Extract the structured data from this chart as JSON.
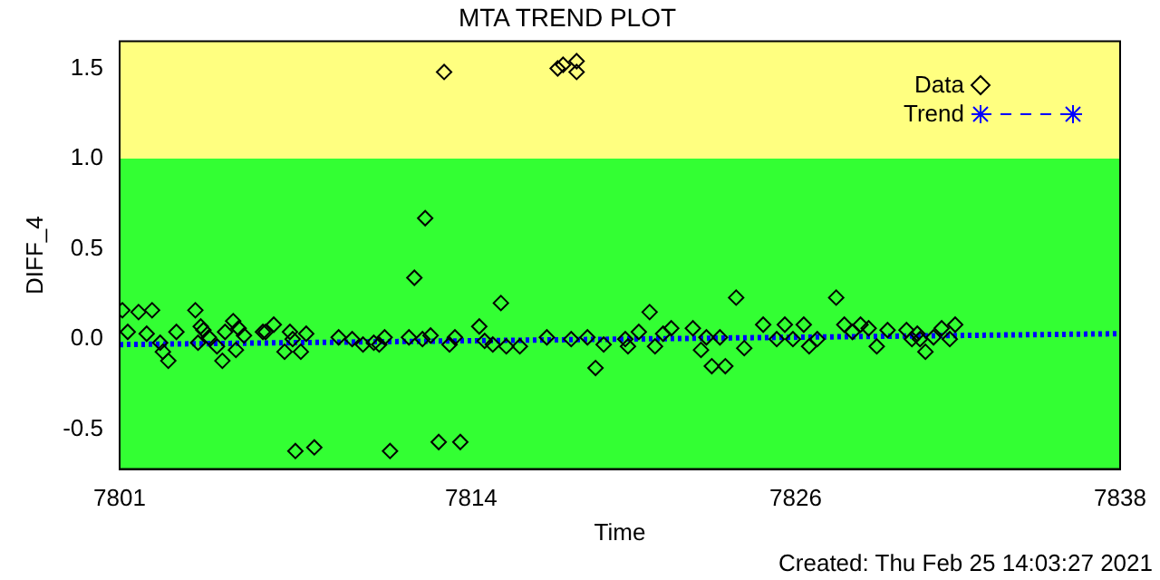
{
  "chart_data": {
    "type": "scatter",
    "title": "MTA TREND PLOT",
    "xlabel": "Time",
    "ylabel": "DIFF_4",
    "xlim": [
      7801,
      7838
    ],
    "xticks": [
      7801,
      7814,
      7826,
      7838
    ],
    "ylim": [
      -0.72,
      1.65
    ],
    "yticks": [
      {
        "value": -0.5,
        "label": "-0.5"
      },
      {
        "value": 0,
        "label": "0.0"
      },
      {
        "value": 0.5,
        "label": "0.5"
      },
      {
        "value": 1,
        "label": "1.0"
      },
      {
        "value": 1.5,
        "label": "1.5"
      }
    ],
    "grid": false,
    "legend": "top right",
    "bands": [
      {
        "axis": "y",
        "from": -0.72,
        "to": 1.0,
        "color": "#33ff33"
      },
      {
        "axis": "y",
        "from": 1.0,
        "to": 1.65,
        "color": "#ffff80"
      }
    ],
    "annotations": [
      "Created: Thu Feb 25 14:03:27 2021"
    ],
    "series": [
      {
        "name": "Data",
        "type": "scatter",
        "color": "#000000",
        "marker": "diamond",
        "x": [
          7801.1,
          7801.7,
          7802.2,
          7801.3,
          7802.0,
          7802.5,
          7802.6,
          7802.8,
          7803.1,
          7803.8,
          7804.0,
          7804.1,
          7803.9,
          7804.3,
          7804.6,
          7804.8,
          7804.9,
          7805.2,
          7805.3,
          7805.4,
          7805.6,
          7806.3,
          7806.4,
          7806.7,
          7807.1,
          7807.3,
          7807.4,
          7807.5,
          7807.7,
          7807.9,
          7808.2,
          7809.1,
          7809.6,
          7810.0,
          7810.4,
          7810.8,
          7810.6,
          7811.0,
          7811.7,
          7811.9,
          7812.2,
          7812.3,
          7812.5,
          7812.8,
          7813.0,
          7813.2,
          7813.4,
          7813.6,
          7814.3,
          7814.5,
          7814.8,
          7815.1,
          7815.3,
          7815.8,
          7816.8,
          7817.2,
          7817.4,
          7817.7,
          7817.9,
          7817.9,
          7818.3,
          7818.6,
          7818.9,
          7819.7,
          7819.8,
          7820.2,
          7820.6,
          7820.8,
          7821.1,
          7821.4,
          7822.2,
          7822.5,
          7822.7,
          7822.9,
          7823.2,
          7823.4,
          7823.8,
          7824.1,
          7824.8,
          7825.3,
          7825.6,
          7825.9,
          7826.3,
          7826.5,
          7826.8,
          7827.5,
          7827.8,
          7828.1,
          7828.4,
          7828.7,
          7829.0,
          7829.4,
          7830.1,
          7830.3,
          7830.5,
          7830.6,
          7830.8,
          7831.1,
          7831.4,
          7831.7,
          7831.9
        ],
        "values": [
          0.16,
          0.15,
          0.16,
          0.04,
          0.03,
          -0.02,
          -0.07,
          -0.12,
          0.04,
          0.16,
          0.07,
          0.05,
          -0.02,
          0.01,
          -0.04,
          -0.12,
          0.04,
          0.1,
          -0.06,
          0.06,
          0.02,
          0.04,
          0.04,
          0.08,
          -0.07,
          0.04,
          0.0,
          -0.62,
          -0.07,
          0.03,
          -0.6,
          0.01,
          0.0,
          -0.03,
          -0.02,
          0.01,
          -0.03,
          -0.62,
          0.01,
          0.34,
          0.0,
          0.67,
          0.02,
          -0.57,
          1.48,
          -0.03,
          0.01,
          -0.57,
          0.07,
          -0.01,
          -0.03,
          0.2,
          -0.04,
          -0.04,
          0.01,
          1.5,
          1.52,
          0.0,
          1.54,
          1.48,
          0.01,
          -0.16,
          -0.03,
          0.0,
          -0.04,
          0.04,
          0.15,
          -0.04,
          0.03,
          0.06,
          0.06,
          -0.06,
          0.01,
          -0.15,
          0.01,
          -0.15,
          0.23,
          -0.05,
          0.08,
          0.0,
          0.08,
          0.0,
          0.08,
          -0.04,
          0.0,
          0.23,
          0.08,
          0.04,
          0.08,
          0.06,
          -0.04,
          0.05,
          0.05,
          0.0,
          0.03,
          0.0,
          -0.07,
          0.01,
          0.06,
          0.0,
          0.08
        ]
      },
      {
        "name": "Trend",
        "type": "line",
        "color": "#0000ff",
        "line_style": "dotted",
        "x": [
          7801,
          7838
        ],
        "values": [
          -0.03,
          0.03
        ]
      }
    ]
  }
}
